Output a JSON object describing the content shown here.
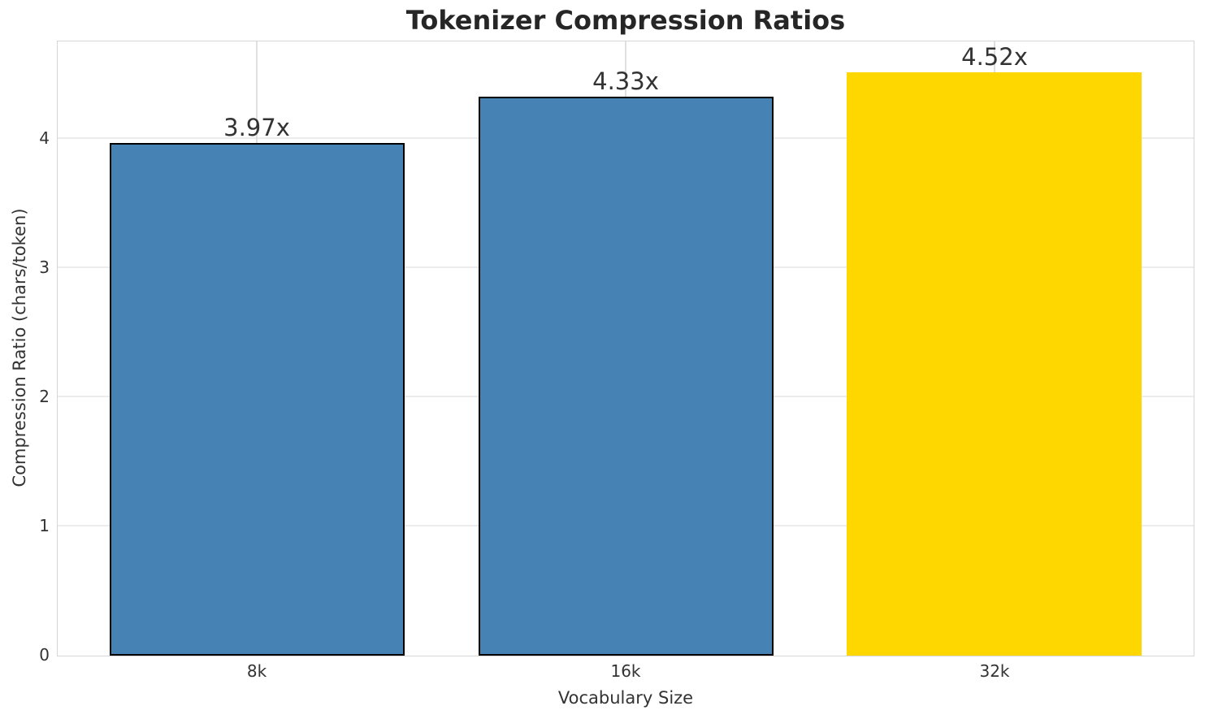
{
  "chart_data": {
    "type": "bar",
    "title": "Tokenizer Compression Ratios",
    "xlabel": "Vocabulary Size",
    "ylabel": "Compression Ratio (chars/token)",
    "categories": [
      "8k",
      "16k",
      "32k"
    ],
    "values": [
      3.97,
      4.33,
      4.52
    ],
    "bar_labels": [
      "3.97x",
      "4.33x",
      "4.52x"
    ],
    "bar_colors": [
      "#4682B4",
      "#4682B4",
      "#FFD700"
    ],
    "bar_edge_colors": [
      "#000000",
      "#000000",
      null
    ],
    "ylim": [
      0,
      4.75
    ],
    "yticks": [
      0,
      1,
      2,
      3,
      4
    ],
    "grid": true,
    "grid_axes": "both",
    "legend": false,
    "colors": {
      "background": "#ffffff",
      "spine": "#d6d6d6",
      "gridline_horizontal": "#ececec",
      "gridline_vertical": "#e0e0e0",
      "title_text": "#262626",
      "tick_text": "#333333",
      "highlight_bar": "#FFD700",
      "default_bar": "#4682B4"
    }
  }
}
